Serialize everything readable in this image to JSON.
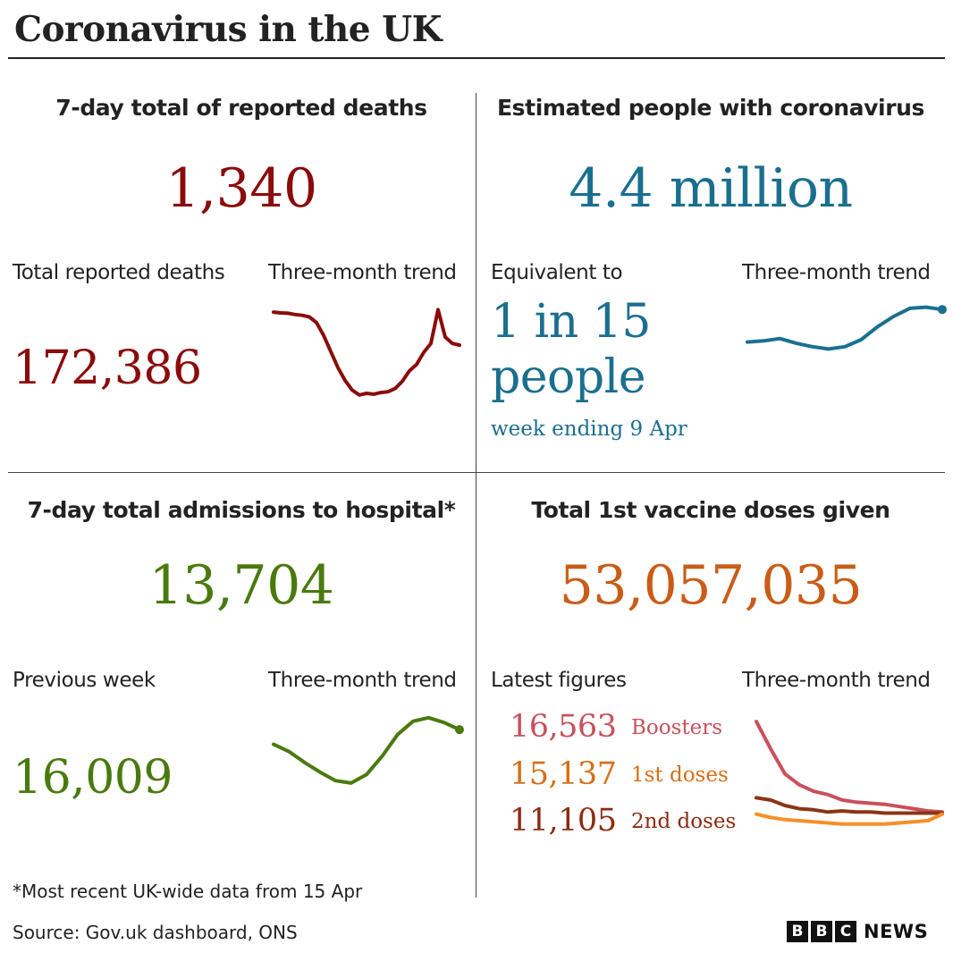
{
  "title": "Coronavirus in the UK",
  "colors": {
    "deaths": "#8b0b0b",
    "infections": "#1a6f8f",
    "hospital": "#4a7a0e",
    "vaccine": "#c95d18",
    "boosters": "#c9505c",
    "first_doses": "#d86e16",
    "second_doses": "#8f2a10",
    "first_doses_line": "#f5902a",
    "second_doses_line": "#8a3515"
  },
  "deaths": {
    "heading": "7-day total of reported deaths",
    "value": "1,340",
    "total_label": "Total reported deaths",
    "total_value": "172,386",
    "trend_label": "Three-month trend"
  },
  "infections": {
    "heading": "Estimated people with coronavirus",
    "value": "4.4 million",
    "equiv_label": "Equivalent to",
    "equiv_line1": "1 in 15",
    "equiv_line2": "people",
    "week_note": "week ending 9 Apr",
    "trend_label": "Three-month trend"
  },
  "hospital": {
    "heading": "7-day total admissions to hospital*",
    "value": "13,704",
    "prev_label": "Previous week",
    "prev_value": "16,009",
    "trend_label": "Three-month trend"
  },
  "vaccine": {
    "heading": "Total 1st vaccine doses given",
    "value": "53,057,035",
    "latest_label": "Latest figures",
    "trend_label": "Three-month trend",
    "rows": [
      {
        "value": "16,563",
        "label": "Boosters"
      },
      {
        "value": "15,137",
        "label": "1st doses"
      },
      {
        "value": "11,105",
        "label": "2nd doses"
      }
    ]
  },
  "footnote": "*Most recent UK-wide data from 15 Apr",
  "source": "Source: Gov.uk dashboard, ONS",
  "logo": {
    "letters": [
      "B",
      "B",
      "C"
    ],
    "news": "NEWS"
  },
  "chart_data": [
    {
      "type": "line",
      "name": "deaths-trend",
      "y": [
        1205,
        1200,
        1198,
        1190,
        1185,
        1175,
        1140,
        1060,
        960,
        860,
        780,
        720,
        690,
        700,
        695,
        705,
        710,
        730,
        775,
        840,
        880,
        955,
        1010,
        1220,
        1050,
        1010,
        1000
      ]
    },
    {
      "type": "line",
      "name": "infections-trend",
      "y": [
        2.9,
        2.95,
        3.05,
        2.85,
        2.7,
        2.6,
        2.7,
        3.0,
        3.55,
        4.0,
        4.35,
        4.4,
        4.3
      ]
    },
    {
      "type": "line",
      "name": "hospital-trend",
      "y": [
        14800,
        14200,
        13300,
        12500,
        11800,
        11600,
        12300,
        13800,
        15600,
        16700,
        17000,
        16600,
        16009
      ]
    },
    {
      "type": "line",
      "name": "vaccine-trend",
      "series": [
        {
          "y": [
            100,
            75,
            52,
            42,
            36,
            33,
            28,
            26,
            25,
            24,
            22,
            20,
            18,
            17
          ]
        },
        {
          "y": [
            30,
            28,
            23,
            20,
            19,
            17,
            18,
            17,
            17,
            16,
            16,
            16,
            16,
            16
          ]
        },
        {
          "y": [
            15,
            12,
            10,
            9,
            8,
            7,
            6,
            6,
            6,
            6,
            7,
            8,
            9,
            15
          ]
        }
      ]
    }
  ]
}
